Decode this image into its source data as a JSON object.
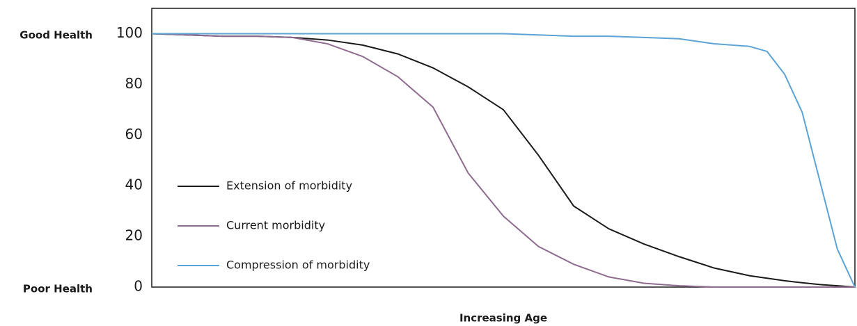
{
  "chart_data": {
    "type": "line",
    "xlabel": "Increasing Age",
    "annotations": [
      "Good Health",
      "Poor Health"
    ],
    "x": [
      0,
      5,
      10,
      15,
      20,
      25,
      30,
      35,
      40,
      45,
      50,
      55,
      60,
      65,
      70,
      75,
      80,
      85,
      87.5,
      90,
      92.5,
      95,
      97.5,
      100
    ],
    "xlim": [
      0,
      100
    ],
    "ylim": [
      0,
      110
    ],
    "yticks": [
      0,
      20,
      40,
      60,
      80,
      100
    ],
    "grid": false,
    "legend": "lower left",
    "series": [
      {
        "name": "Extension of morbidity",
        "color": "#1a1a1a",
        "values": [
          100,
          99.5,
          99,
          99,
          98.5,
          97.5,
          95.5,
          92,
          86.5,
          79,
          70,
          52,
          32,
          23,
          17,
          12,
          7.5,
          4.5,
          3.5,
          2.5,
          1.7,
          1,
          0.5,
          0
        ]
      },
      {
        "name": "Current morbidity",
        "color": "#8e6b8f",
        "values": [
          100,
          99.5,
          99,
          99,
          98.5,
          96,
          91,
          83,
          71,
          45,
          28,
          16,
          9,
          4,
          1.5,
          0.5,
          0,
          0,
          0,
          0,
          0,
          0,
          0,
          0
        ]
      },
      {
        "name": "Compression of morbidity",
        "color": "#5ba3d6",
        "values": [
          100,
          100,
          100,
          100,
          100,
          100,
          100,
          100,
          100,
          100,
          100,
          99.5,
          99,
          99,
          98.5,
          98,
          96,
          95,
          93,
          84,
          69,
          42,
          15,
          0
        ]
      }
    ]
  }
}
